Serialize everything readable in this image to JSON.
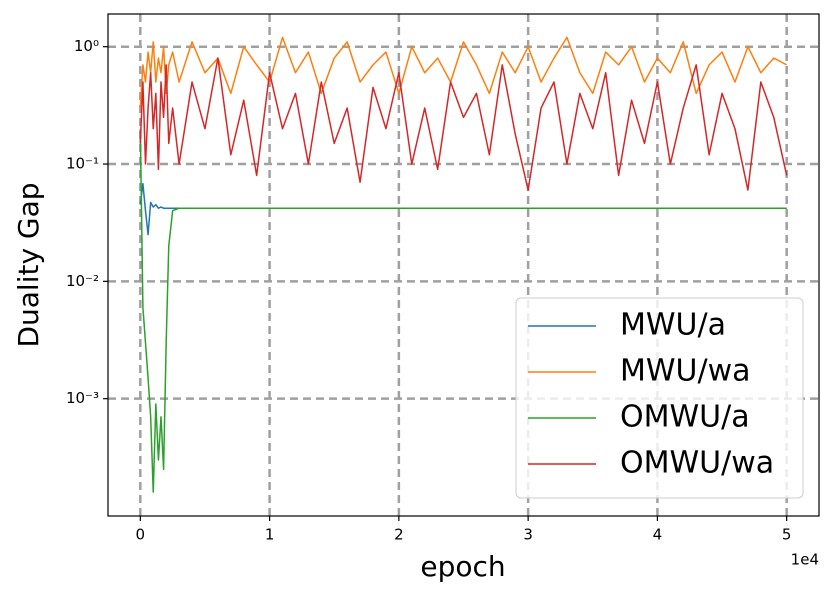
{
  "chart_data": {
    "type": "line",
    "x_label": "epoch",
    "y_label": "Duality Gap",
    "x_offset_label": "1e4",
    "y_log": true,
    "grid": true,
    "legend_loc": "lower right",
    "xlim": [
      -2500,
      52500
    ],
    "xticks": [
      0,
      {
        "value": 10000,
        "label": "1"
      },
      {
        "value": 20000,
        "label": "2"
      },
      {
        "value": 30000,
        "label": "3"
      },
      {
        "value": 40000,
        "label": "4"
      },
      {
        "value": 50000,
        "label": "5"
      }
    ],
    "ylim": [
      0.0001,
      1.9
    ],
    "yticks": [
      {
        "value": 0.001,
        "label": "10⁻³"
      },
      {
        "value": 0.01,
        "label": "10⁻²"
      },
      {
        "value": 0.1,
        "label": "10⁻¹"
      },
      {
        "value": 1,
        "label": "10⁰"
      }
    ],
    "x": [
      0,
      200,
      400,
      600,
      800,
      1000,
      1200,
      1400,
      1600,
      1800,
      2000,
      2200,
      2500,
      3000,
      4000,
      5000,
      6000,
      7000,
      8000,
      9000,
      10000,
      11000,
      12000,
      13000,
      14000,
      15000,
      16000,
      17000,
      18000,
      19000,
      20000,
      21000,
      22000,
      23000,
      24000,
      25000,
      26000,
      27000,
      28000,
      29000,
      30000,
      31000,
      32000,
      33000,
      34000,
      35000,
      36000,
      37000,
      38000,
      39000,
      40000,
      41000,
      42000,
      43000,
      44000,
      45000,
      46000,
      47000,
      48000,
      49000,
      50000
    ],
    "series": [
      {
        "name": "MWU/a",
        "color": "#1f77b4",
        "values": [
          0.045,
          0.068,
          0.04,
          0.025,
          0.047,
          0.043,
          0.045,
          0.042,
          0.043,
          0.042,
          0.042,
          0.042,
          0.042,
          0.042,
          0.042,
          0.042,
          0.042,
          0.042,
          0.042,
          0.042,
          0.042,
          0.042,
          0.042,
          0.042,
          0.042,
          0.042,
          0.042,
          0.042,
          0.042,
          0.042,
          0.042,
          0.042,
          0.042,
          0.042,
          0.042,
          0.042,
          0.042,
          0.042,
          0.042,
          0.042,
          0.042,
          0.042,
          0.042,
          0.042,
          0.042,
          0.042,
          0.042,
          0.042,
          0.042,
          0.042,
          0.042,
          0.042,
          0.042,
          0.042,
          0.042,
          0.042,
          0.042,
          0.042,
          0.042,
          0.042,
          0.042
        ]
      },
      {
        "name": "MWU/wa",
        "color": "#ff7f0e",
        "values": [
          0.3,
          0.7,
          0.5,
          0.9,
          0.6,
          1.1,
          0.5,
          0.8,
          0.6,
          1.0,
          0.4,
          0.7,
          0.9,
          0.5,
          1.1,
          0.6,
          0.8,
          0.4,
          1.0,
          0.7,
          0.5,
          1.2,
          0.6,
          0.9,
          0.4,
          0.8,
          1.1,
          0.5,
          0.7,
          0.9,
          0.4,
          1.0,
          0.6,
          0.8,
          0.5,
          1.1,
          0.7,
          0.4,
          0.9,
          0.6,
          1.0,
          0.5,
          0.8,
          1.2,
          0.6,
          0.4,
          0.9,
          0.7,
          1.0,
          0.5,
          0.8,
          0.6,
          1.1,
          0.4,
          0.7,
          0.9,
          0.5,
          1.0,
          0.6,
          0.8,
          0.7
        ]
      },
      {
        "name": "OMWU/a",
        "color": "#2ca02c",
        "values": [
          0.2,
          0.006,
          0.003,
          0.0015,
          0.0007,
          0.00016,
          0.0009,
          0.0003,
          0.0007,
          0.00025,
          0.003,
          0.02,
          0.04,
          0.042,
          0.042,
          0.042,
          0.042,
          0.042,
          0.042,
          0.042,
          0.042,
          0.042,
          0.042,
          0.042,
          0.042,
          0.042,
          0.042,
          0.042,
          0.042,
          0.042,
          0.042,
          0.042,
          0.042,
          0.042,
          0.042,
          0.042,
          0.042,
          0.042,
          0.042,
          0.042,
          0.042,
          0.042,
          0.042,
          0.042,
          0.042,
          0.042,
          0.042,
          0.042,
          0.042,
          0.042,
          0.042,
          0.042,
          0.042,
          0.042,
          0.042,
          0.042,
          0.042,
          0.042,
          0.042,
          0.042,
          0.042
        ]
      },
      {
        "name": "OMWU/wa",
        "color": "#d62728",
        "values": [
          0.15,
          0.5,
          0.1,
          0.3,
          0.6,
          0.2,
          0.4,
          0.09,
          0.5,
          0.25,
          0.7,
          0.15,
          0.3,
          0.1,
          0.5,
          0.2,
          0.8,
          0.12,
          0.35,
          0.08,
          0.6,
          0.2,
          0.4,
          0.1,
          0.5,
          0.15,
          0.3,
          0.07,
          0.45,
          0.2,
          0.6,
          0.1,
          0.3,
          0.09,
          0.5,
          0.25,
          0.4,
          0.12,
          0.7,
          0.18,
          0.06,
          0.3,
          0.5,
          0.1,
          0.4,
          0.2,
          0.6,
          0.08,
          0.35,
          0.15,
          0.5,
          0.1,
          0.3,
          0.7,
          0.12,
          0.4,
          0.2,
          0.06,
          0.5,
          0.25,
          0.08
        ]
      }
    ]
  }
}
